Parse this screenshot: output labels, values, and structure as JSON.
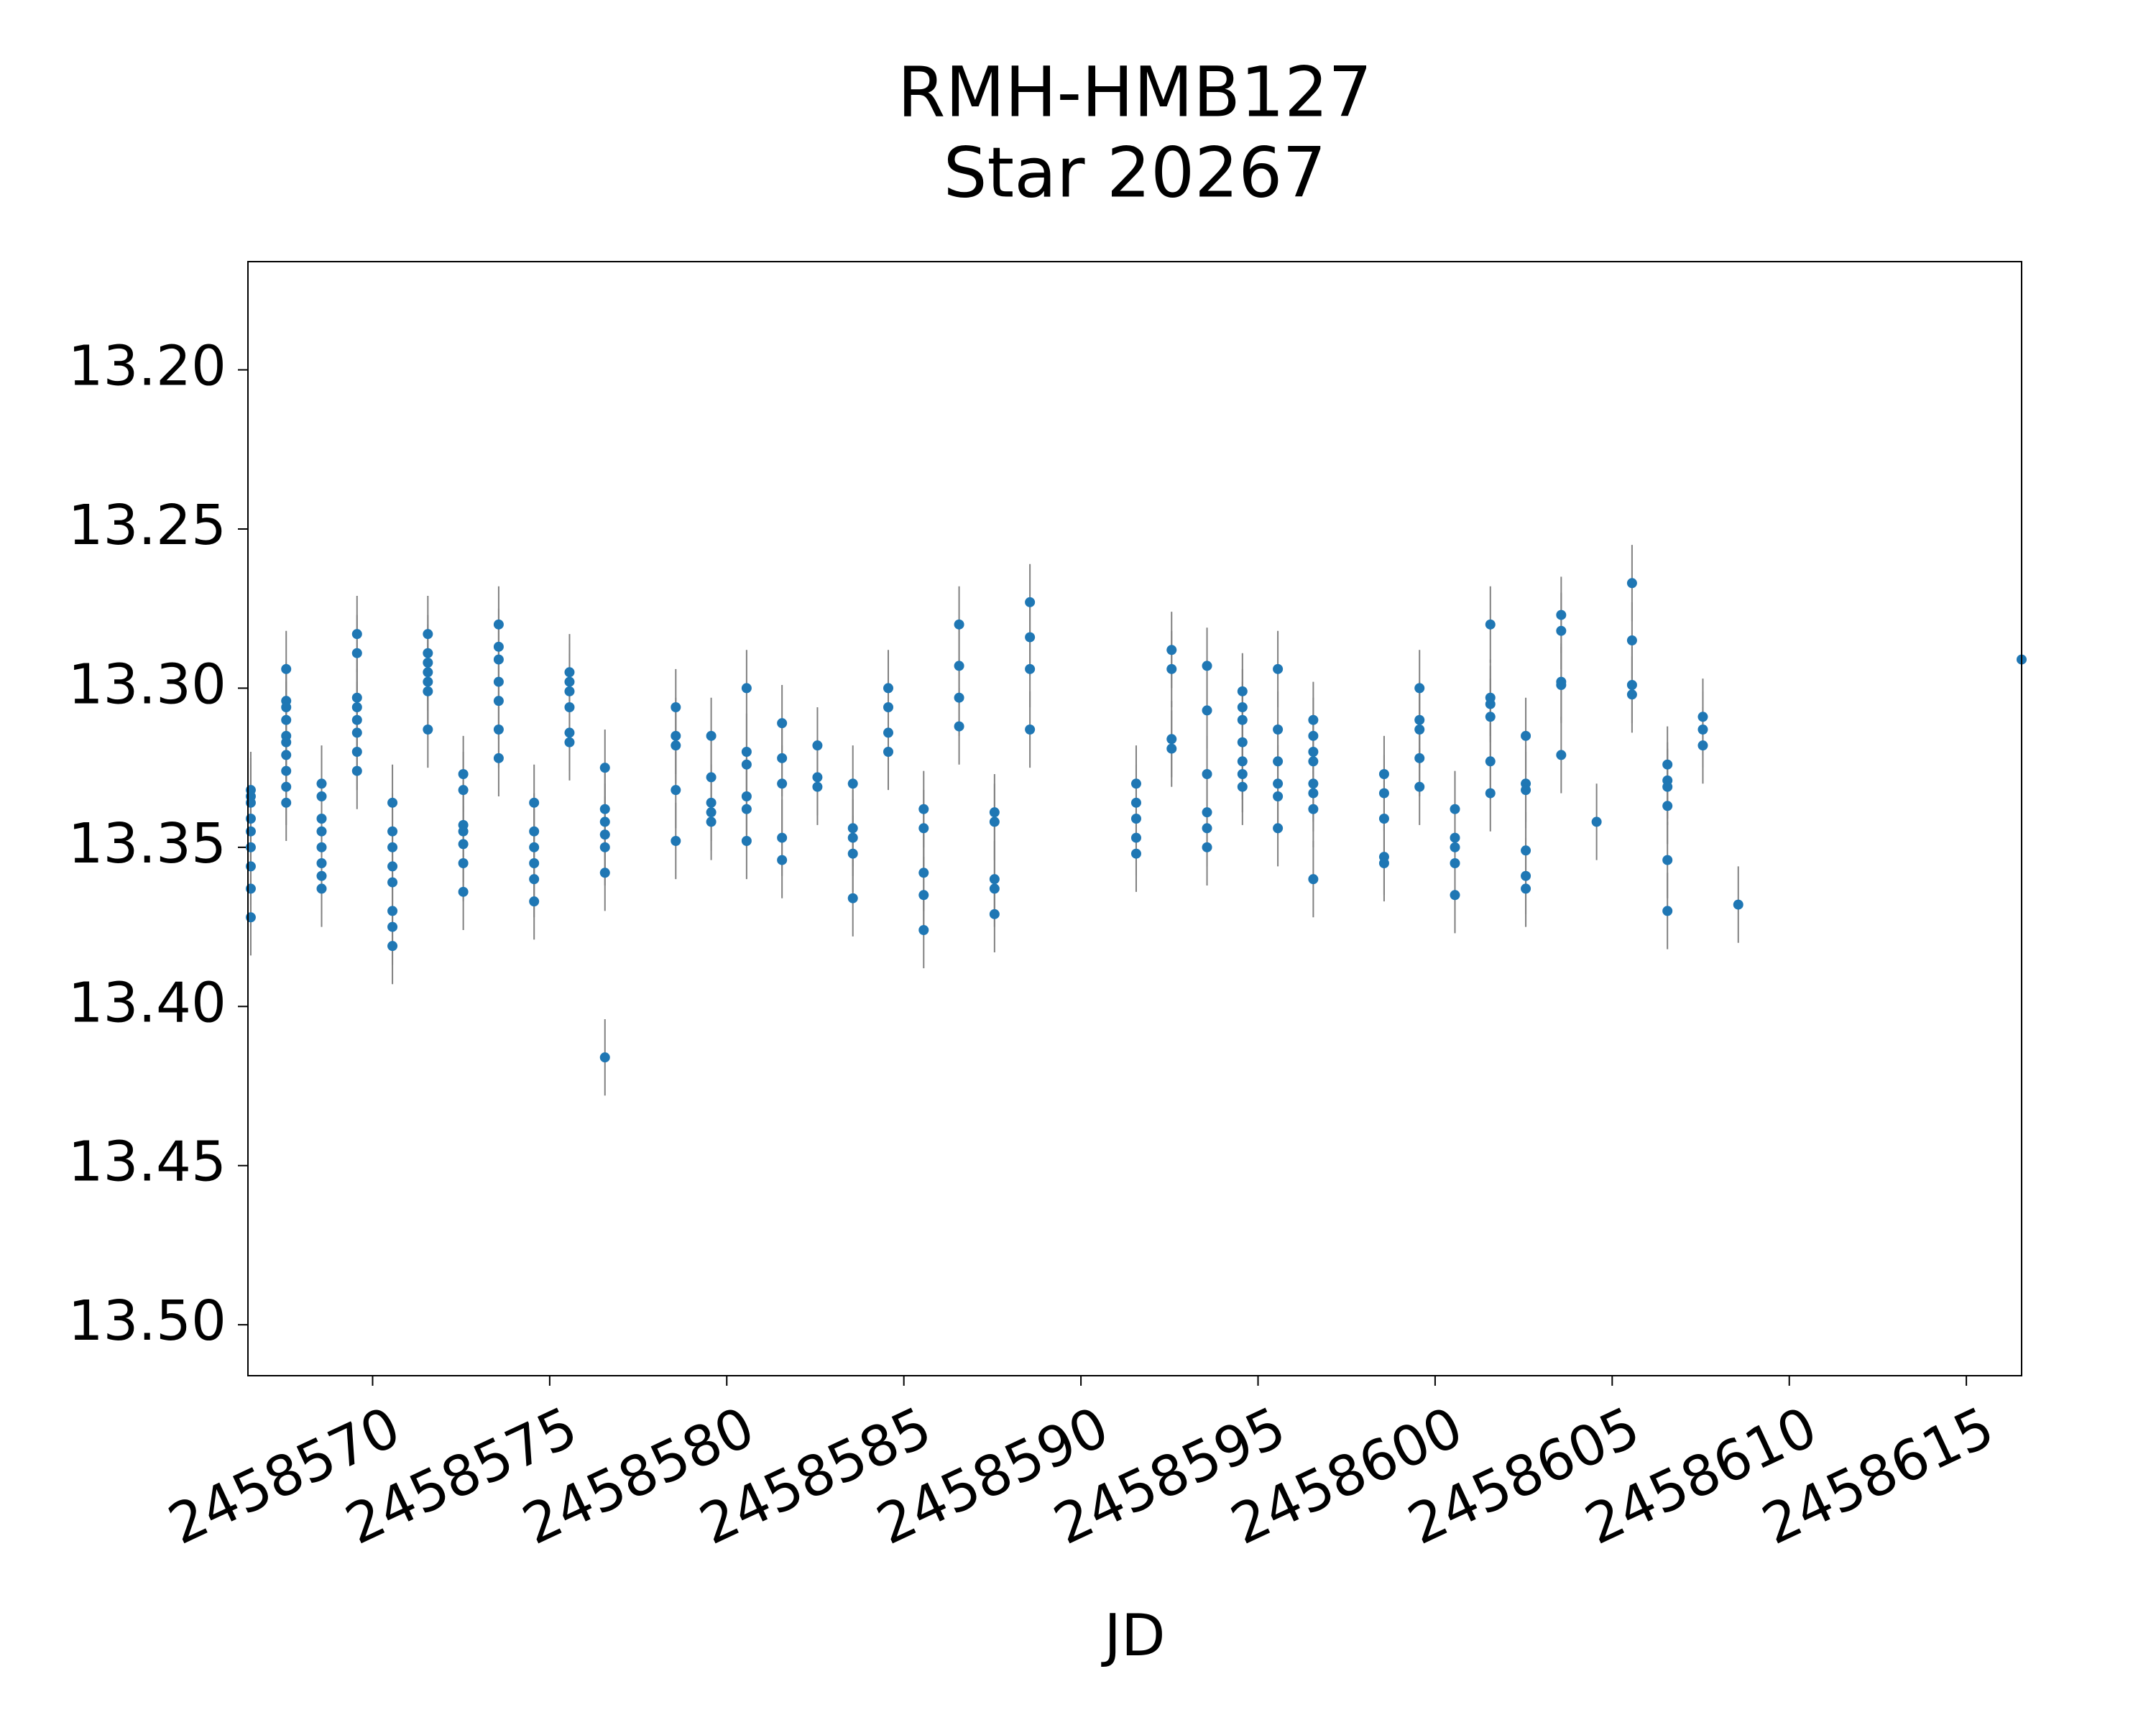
{
  "chart_data": {
    "type": "scatter",
    "title": [
      "RMH-HMB127",
      "Star 20267"
    ],
    "x_label": "JD",
    "color": "#1f77b4",
    "error_color": "#808080",
    "y_inverted": true,
    "yerr": 0.012,
    "xlim": [
      2458566.48,
      2458616.56
    ],
    "ylim": [
      13.166,
      13.516
    ],
    "xticks": [
      2458570,
      2458575,
      2458580,
      2458585,
      2458590,
      2458595,
      2458600,
      2458605,
      2458610,
      2458615
    ],
    "yticks": [
      {
        "value": 13.2,
        "label": "13.20"
      },
      {
        "value": 13.25,
        "label": "13.25"
      },
      {
        "value": 13.3,
        "label": "13.30"
      },
      {
        "value": 13.35,
        "label": "13.35"
      },
      {
        "value": 13.4,
        "label": "13.40"
      },
      {
        "value": 13.45,
        "label": "13.45"
      },
      {
        "value": 13.5,
        "label": "13.50"
      }
    ],
    "x": [
      2458566.56,
      2458566.56,
      2458566.56,
      2458566.56,
      2458566.56,
      2458566.56,
      2458566.56,
      2458566.56,
      2458566.56,
      2458567.56,
      2458567.56,
      2458567.56,
      2458567.56,
      2458567.56,
      2458567.56,
      2458567.56,
      2458567.56,
      2458567.56,
      2458567.56,
      2458568.56,
      2458568.56,
      2458568.56,
      2458568.56,
      2458568.56,
      2458568.56,
      2458568.56,
      2458568.56,
      2458569.56,
      2458569.56,
      2458569.56,
      2458569.56,
      2458569.56,
      2458569.56,
      2458569.56,
      2458569.56,
      2458570.56,
      2458570.56,
      2458570.56,
      2458570.56,
      2458570.56,
      2458570.56,
      2458570.56,
      2458570.56,
      2458571.56,
      2458571.56,
      2458571.56,
      2458571.56,
      2458571.56,
      2458571.56,
      2458571.56,
      2458572.56,
      2458572.56,
      2458572.56,
      2458572.56,
      2458572.56,
      2458572.56,
      2458572.56,
      2458573.56,
      2458573.56,
      2458573.56,
      2458573.56,
      2458573.56,
      2458573.56,
      2458573.56,
      2458574.56,
      2458574.56,
      2458574.56,
      2458574.56,
      2458574.56,
      2458574.56,
      2458575.56,
      2458575.56,
      2458575.56,
      2458575.56,
      2458575.56,
      2458575.56,
      2458576.56,
      2458576.56,
      2458576.56,
      2458576.56,
      2458576.56,
      2458576.56,
      2458576.56,
      2458578.56,
      2458578.56,
      2458578.56,
      2458578.56,
      2458578.56,
      2458579.56,
      2458579.56,
      2458579.56,
      2458579.56,
      2458579.56,
      2458580.56,
      2458580.56,
      2458580.56,
      2458580.56,
      2458580.56,
      2458580.56,
      2458581.56,
      2458581.56,
      2458581.56,
      2458581.56,
      2458581.56,
      2458582.56,
      2458582.56,
      2458582.56,
      2458583.56,
      2458583.56,
      2458583.56,
      2458583.56,
      2458583.56,
      2458584.56,
      2458584.56,
      2458584.56,
      2458584.56,
      2458585.56,
      2458585.56,
      2458585.56,
      2458585.56,
      2458585.56,
      2458586.56,
      2458586.56,
      2458586.56,
      2458586.56,
      2458587.56,
      2458587.56,
      2458587.56,
      2458587.56,
      2458587.56,
      2458588.56,
      2458588.56,
      2458588.56,
      2458588.56,
      2458591.56,
      2458591.56,
      2458591.56,
      2458591.56,
      2458591.56,
      2458592.56,
      2458592.56,
      2458592.56,
      2458592.56,
      2458593.56,
      2458593.56,
      2458593.56,
      2458593.56,
      2458593.56,
      2458593.56,
      2458594.56,
      2458594.56,
      2458594.56,
      2458594.56,
      2458594.56,
      2458594.56,
      2458594.56,
      2458595.56,
      2458595.56,
      2458595.56,
      2458595.56,
      2458595.56,
      2458595.56,
      2458596.56,
      2458596.56,
      2458596.56,
      2458596.56,
      2458596.56,
      2458596.56,
      2458596.56,
      2458596.56,
      2458598.56,
      2458598.56,
      2458598.56,
      2458598.56,
      2458598.56,
      2458599.56,
      2458599.56,
      2458599.56,
      2458599.56,
      2458599.56,
      2458600.56,
      2458600.56,
      2458600.56,
      2458600.56,
      2458600.56,
      2458601.56,
      2458601.56,
      2458601.56,
      2458601.56,
      2458601.56,
      2458601.56,
      2458602.56,
      2458602.56,
      2458602.56,
      2458602.56,
      2458602.56,
      2458602.56,
      2458603.56,
      2458603.56,
      2458603.56,
      2458603.56,
      2458603.56,
      2458604.56,
      2458605.56,
      2458605.56,
      2458605.56,
      2458605.56,
      2458606.56,
      2458606.56,
      2458606.56,
      2458606.56,
      2458606.56,
      2458606.56,
      2458607.56,
      2458607.56,
      2458607.56,
      2458608.56,
      2458616.56
    ],
    "values": [
      13.332,
      13.334,
      13.336,
      13.341,
      13.345,
      13.35,
      13.356,
      13.363,
      13.372,
      13.294,
      13.304,
      13.306,
      13.31,
      13.315,
      13.317,
      13.321,
      13.326,
      13.331,
      13.336,
      13.33,
      13.334,
      13.341,
      13.345,
      13.35,
      13.355,
      13.359,
      13.363,
      13.283,
      13.289,
      13.303,
      13.306,
      13.31,
      13.314,
      13.32,
      13.326,
      13.336,
      13.345,
      13.35,
      13.356,
      13.361,
      13.37,
      13.375,
      13.381,
      13.283,
      13.289,
      13.292,
      13.295,
      13.298,
      13.301,
      13.313,
      13.327,
      13.332,
      13.343,
      13.345,
      13.349,
      13.355,
      13.364,
      13.28,
      13.287,
      13.291,
      13.298,
      13.304,
      13.313,
      13.322,
      13.336,
      13.345,
      13.35,
      13.355,
      13.36,
      13.367,
      13.295,
      13.298,
      13.301,
      13.306,
      13.314,
      13.317,
      13.325,
      13.338,
      13.342,
      13.346,
      13.35,
      13.358,
      13.416,
      13.306,
      13.315,
      13.318,
      13.332,
      13.348,
      13.315,
      13.328,
      13.336,
      13.339,
      13.342,
      13.3,
      13.32,
      13.324,
      13.334,
      13.338,
      13.348,
      13.311,
      13.322,
      13.33,
      13.347,
      13.354,
      13.318,
      13.328,
      13.331,
      13.33,
      13.344,
      13.347,
      13.352,
      13.366,
      13.3,
      13.306,
      13.314,
      13.32,
      13.338,
      13.344,
      13.358,
      13.365,
      13.376,
      13.28,
      13.293,
      13.303,
      13.312,
      13.339,
      13.342,
      13.36,
      13.363,
      13.371,
      13.273,
      13.284,
      13.294,
      13.313,
      13.33,
      13.336,
      13.341,
      13.347,
      13.352,
      13.288,
      13.294,
      13.316,
      13.319,
      13.293,
      13.307,
      13.327,
      13.339,
      13.344,
      13.35,
      13.301,
      13.306,
      13.31,
      13.317,
      13.323,
      13.327,
      13.331,
      13.294,
      13.313,
      13.323,
      13.33,
      13.334,
      13.344,
      13.31,
      13.315,
      13.32,
      13.323,
      13.33,
      13.333,
      13.338,
      13.36,
      13.327,
      13.333,
      13.341,
      13.353,
      13.355,
      13.3,
      13.31,
      13.313,
      13.322,
      13.331,
      13.338,
      13.347,
      13.35,
      13.355,
      13.365,
      13.28,
      13.303,
      13.305,
      13.309,
      13.323,
      13.333,
      13.315,
      13.33,
      13.332,
      13.351,
      13.359,
      13.363,
      13.277,
      13.282,
      13.298,
      13.299,
      13.321,
      13.342,
      13.267,
      13.285,
      13.299,
      13.302,
      13.324,
      13.329,
      13.331,
      13.337,
      13.354,
      13.37,
      13.309,
      13.313,
      13.318,
      13.368,
      13.291
    ]
  }
}
